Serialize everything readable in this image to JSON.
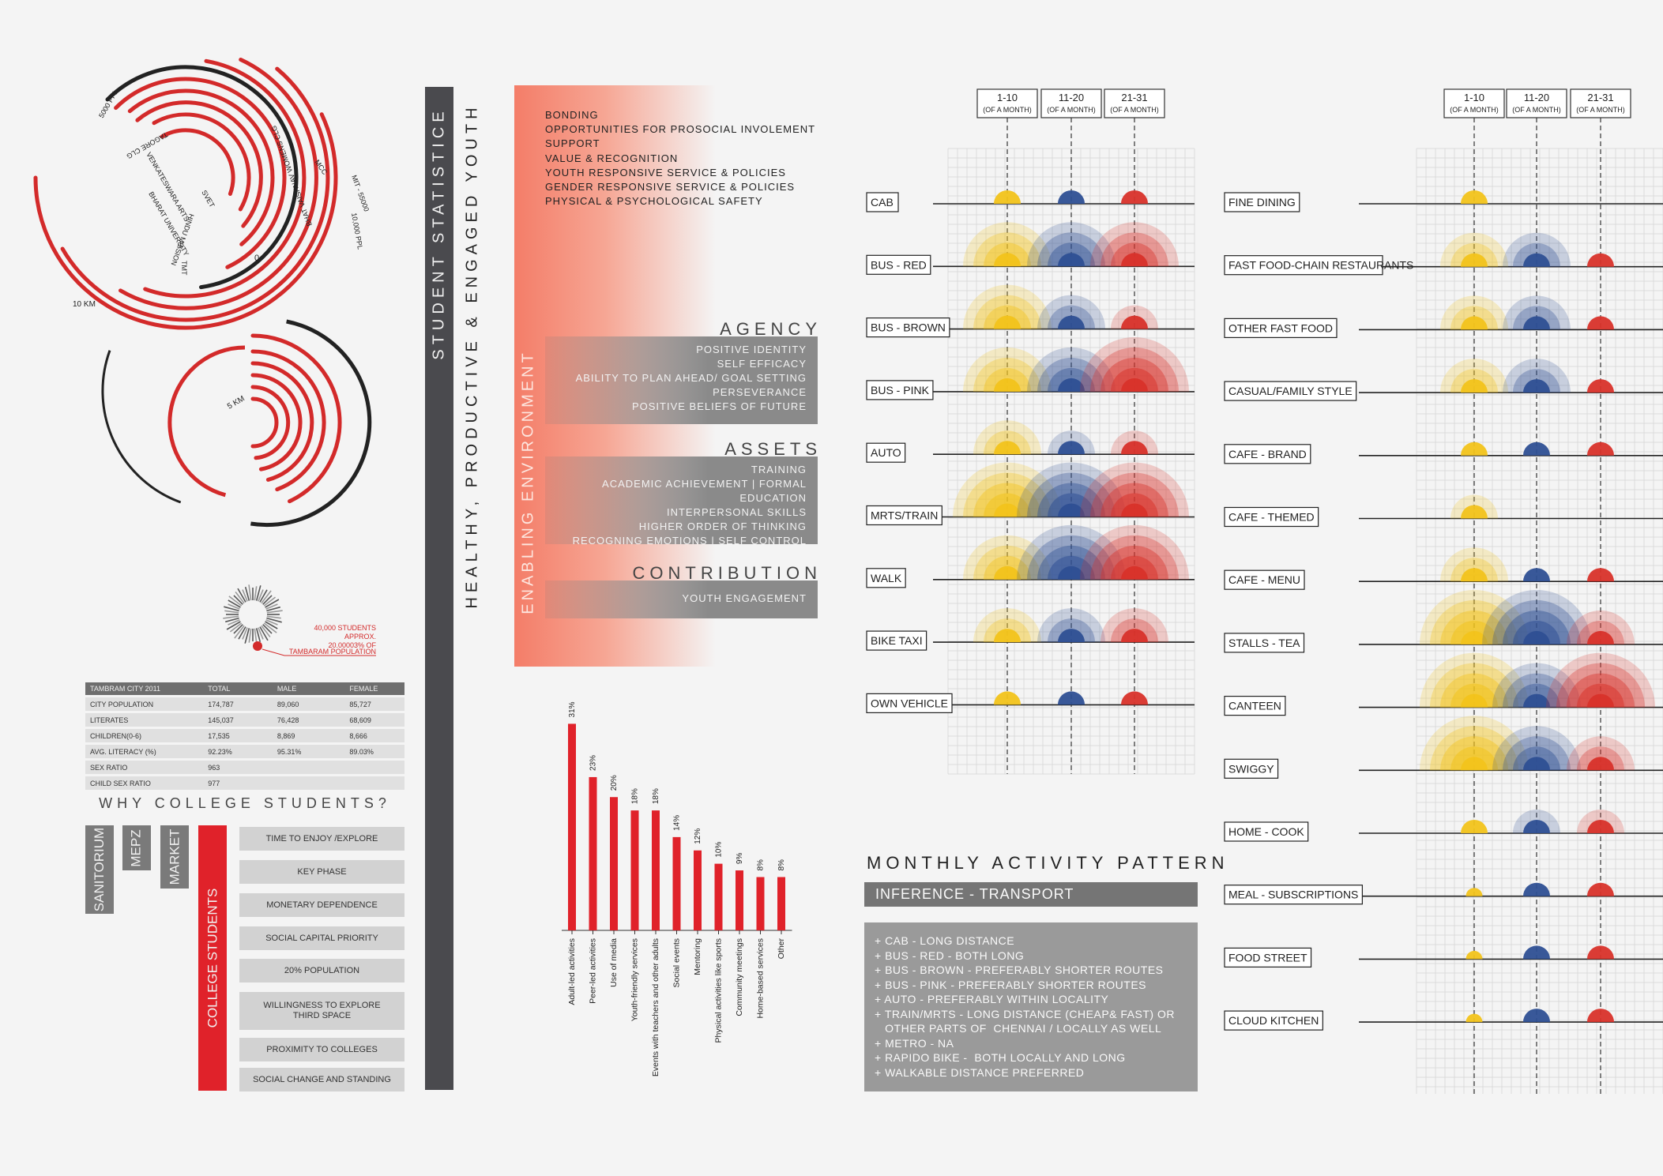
{
  "radial": {
    "labels": {
      "ppl_5000": "5000 PPL",
      "mit": "MIT - 55000",
      "ppl_10000": "10,000 PPL",
      "mcc": "MCC",
      "venkateswara": "VENKATESWARA ARTS",
      "bharat_univ": "BHARAT UNIVERSITY",
      "svet": "SVET",
      "tagore": "TAGORE CLG",
      "bhat": "BHAT VAISHNAV WOMENS CLG",
      "hindu": "HINDU MISSION",
      "tmt": "TMT",
      "zero": "0",
      "km10": "10 KM",
      "km5": "5 KM"
    },
    "students_note": [
      "40,000 STUDENTS",
      "APPROX.",
      "20.00003% OF",
      "TAMBARAM POPULATION"
    ],
    "accent": "#d32a2a"
  },
  "stat_table": {
    "header": [
      "TAMBRAM CITY 2011",
      "TOTAL",
      "MALE",
      "FEMALE"
    ],
    "rows": [
      [
        "CITY POPULATION",
        "174,787",
        "89,060",
        "85,727"
      ],
      [
        "LITERATES",
        "145,037",
        "76,428",
        "68,609"
      ],
      [
        "CHILDREN(0-6)",
        "17,535",
        "8,869",
        "8,666"
      ],
      [
        "AVG. LITERACY (%)",
        "92.23%",
        "95.31%",
        "89.03%"
      ],
      [
        "SEX RATIO",
        "963",
        "",
        ""
      ],
      [
        "CHILD SEX RATIO",
        "977",
        "",
        ""
      ]
    ]
  },
  "why": {
    "title": "WHY COLLEGE STUDENTS?",
    "tags": [
      "SANITORIUM",
      "MEPZ",
      "MARKET"
    ],
    "main": "COLLEGE STUDENTS",
    "reasons": [
      "TIME TO ENJOY /EXPLORE",
      "KEY PHASE",
      "MONETARY DEPENDENCE",
      "SOCIAL CAPITAL PRIORITY",
      "20% POPULATION",
      "WILLINGNESS TO EXPLORE\nTHIRD SPACE",
      "PROXIMITY TO COLLEGES",
      "SOCIAL CHANGE AND STANDING"
    ]
  },
  "middle": {
    "dark_bar_text": "STUDENT STATISTICE",
    "healthy_text": "HEALTHY, PRODUCTIVE & ENGAGED YOUTH",
    "enabling_text": "ENABLING ENVIRONMENT",
    "bonding": [
      "BONDING",
      "OPPORTUNITIES FOR PROSOCIAL INVOLEMENT",
      "SUPPORT",
      "VALUE & RECOGNITION",
      "YOUTH RESPONSIVE SERVICE & POLICIES",
      "GENDER RESPONSIVE SERVICE & POLICIES",
      "PHYSICAL & PSYCHOLOGICAL SAFETY"
    ],
    "agency": {
      "title": "AGENCY",
      "items": [
        "POSITIVE IDENTITY",
        "SELF EFFICACY",
        "ABILITY TO PLAN AHEAD/ GOAL SETTING",
        "PERSEVERANCE",
        "POSITIVE BELIEFS OF FUTURE"
      ]
    },
    "assets": {
      "title": "ASSETS",
      "items": [
        "TRAINING",
        "ACADEMIC ACHIEVEMENT | FORMAL EDUCATION",
        "INTERPERSONAL SKILLS",
        "HIGHER ORDER OF THINKING",
        "RECOGNING EMOTIONS | SELF CONTROL"
      ]
    },
    "contribution": {
      "title": "CONTRIBUTION",
      "items": [
        "YOUTH ENGAGEMENT"
      ]
    }
  },
  "chart_data": [
    {
      "type": "bar",
      "categories": [
        "Adult-led activities",
        "Peer-led activities",
        "Use of media",
        "Youth-friendly services",
        "Events with teachers and other adults",
        "Social events",
        "Mentoring",
        "Physical activities like sports",
        "Community meetings",
        "Home-based services",
        "Other"
      ],
      "values": [
        31,
        23,
        20,
        18,
        18,
        14,
        12,
        10,
        9,
        8,
        8
      ],
      "value_labels": [
        "31%",
        "23%",
        "20%",
        "18%",
        "18%",
        "14%",
        "12%",
        "10%",
        "9%",
        "8%",
        "8%"
      ],
      "color": "#e0222a"
    },
    {
      "type": "bubble-timeline",
      "periods": [
        "1-10",
        "11-20",
        "21-31"
      ],
      "period_note": "(OF A MONTH)",
      "categories": [
        "CAB",
        "BUS - RED",
        "BUS - BROWN",
        "BUS - PINK",
        "AUTO",
        "MRTS/TRAIN",
        "WALK",
        "BIKE TAXI",
        "OWN VEHICLE"
      ],
      "series": [
        {
          "name": "1-10",
          "color": "#f2c31b",
          "values": [
            1,
            4,
            4,
            4,
            3,
            5,
            4,
            3,
            1
          ]
        },
        {
          "name": "11-20",
          "color": "#2e4f93",
          "values": [
            1,
            4,
            3,
            4,
            2,
            5,
            5,
            3,
            1
          ]
        },
        {
          "name": "21-31",
          "color": "#d8312a",
          "values": [
            1,
            4,
            2,
            5,
            2,
            5,
            5,
            3,
            1
          ]
        }
      ]
    },
    {
      "type": "bubble-timeline",
      "periods": [
        "1-10",
        "11-20",
        "21-31"
      ],
      "period_note": "(OF A MONTH)",
      "categories": [
        "FINE DINING",
        "FAST FOOD-CHAIN RESTAURANTS",
        "OTHER FAST FOOD",
        "CASUAL/FAMILY STYLE",
        "CAFE - BRAND",
        "CAFE - THEMED",
        "CAFE - MENU",
        "STALLS - TEA",
        "CANTEEN",
        "SWIGGY",
        "HOME - COOK",
        "MEAL - SUBSCRIPTIONS",
        "FOOD STREET",
        "CLOUD KITCHEN"
      ],
      "series": [
        {
          "name": "1-10",
          "color": "#f2c31b",
          "values": [
            1,
            3,
            3,
            3,
            1,
            2,
            3,
            5,
            5,
            5,
            1,
            0.5,
            0.5,
            0.5
          ]
        },
        {
          "name": "11-20",
          "color": "#2e4f93",
          "values": [
            0,
            3,
            3,
            3,
            1,
            0,
            1,
            5,
            4,
            4,
            2,
            1,
            1,
            1
          ]
        },
        {
          "name": "21-31",
          "color": "#d8312a",
          "values": [
            0,
            1,
            1,
            1,
            1,
            0,
            1,
            3,
            5,
            3,
            2,
            1,
            1,
            1
          ]
        }
      ]
    }
  ],
  "transport_notes": {
    "title": "MONTHLY ACTIVITY PATTERN",
    "inference_title": "INFERENCE - TRANSPORT",
    "items": [
      "+ CAB - LONG DISTANCE",
      "+ BUS - RED - BOTH LONG",
      "+ BUS - BROWN - PREFERABLY SHORTER ROUTES",
      "+ BUS - PINK - PREFERABLY SHORTER ROUTES",
      "+ AUTO - PREFERABLY WITHIN LOCALITY",
      "+ TRAIN/MRTS - LONG DISTANCE (CHEAP& FAST) OR",
      "   OTHER PARTS OF  CHENNAI / LOCALLY AS WELL",
      "+ METRO - NA",
      "+ RAPIDO BIKE -  BOTH LOCALLY AND LONG",
      "+ WALKABLE DISTANCE PREFERRED"
    ]
  }
}
